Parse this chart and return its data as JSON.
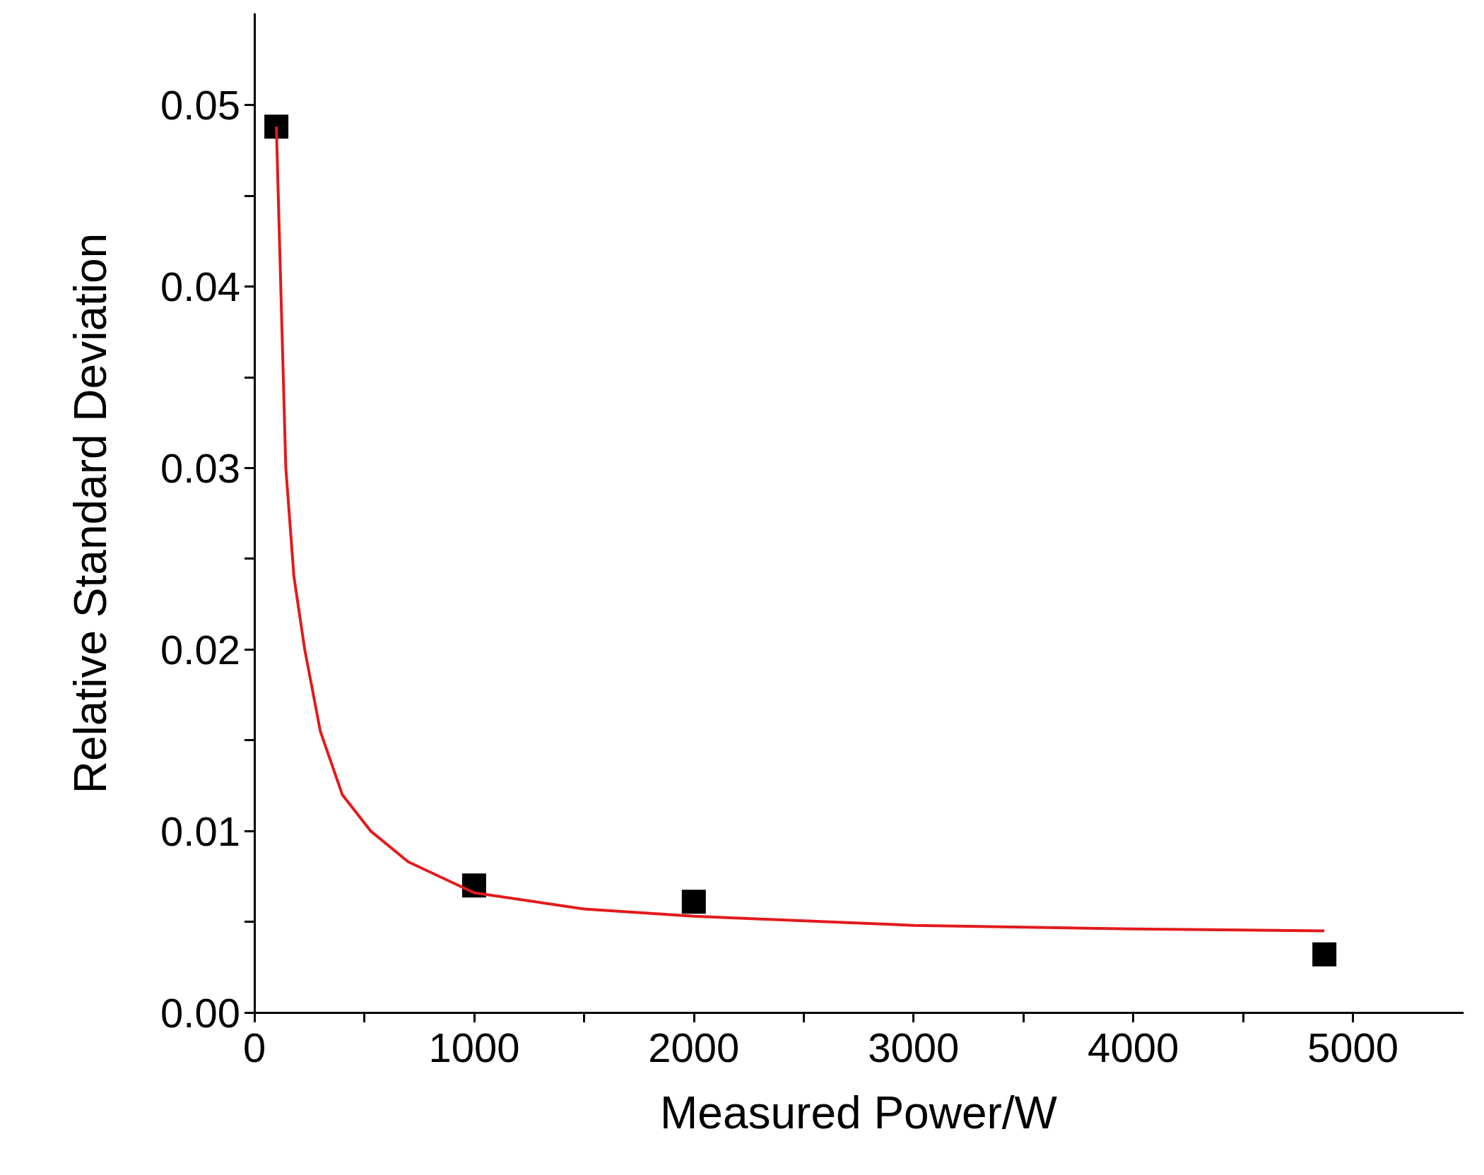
{
  "chart_data": {
    "type": "scatter",
    "xlabel": "Measured Power/W",
    "ylabel": "Relative Standard Deviation",
    "xlim": [
      0,
      5500
    ],
    "ylim": [
      0,
      0.055
    ],
    "xticks": [
      0,
      {
        "value": 500,
        "label": null
      },
      1000,
      {
        "value": 1500,
        "label": null
      },
      2000,
      {
        "value": 2500,
        "label": null
      },
      3000,
      {
        "value": 3500,
        "label": null
      },
      4000,
      {
        "value": 4500,
        "label": null
      },
      5000
    ],
    "yticks": [
      {
        "value": 0,
        "label": "0.00"
      },
      {
        "value": 0.005,
        "label": null
      },
      {
        "value": 0.01,
        "label": "0.01"
      },
      {
        "value": 0.015,
        "label": null
      },
      {
        "value": 0.02,
        "label": "0.02"
      },
      {
        "value": 0.025,
        "label": null
      },
      {
        "value": 0.03,
        "label": "0.03"
      },
      {
        "value": 0.035,
        "label": null
      },
      {
        "value": 0.04,
        "label": "0.04"
      },
      {
        "value": 0.045,
        "label": null
      },
      {
        "value": 0.05,
        "label": "0.05"
      }
    ],
    "grid": false,
    "series": [
      {
        "marker": "square",
        "color": "#000000",
        "x": [
          100,
          1000,
          2000,
          4870
        ],
        "values": [
          0.0488,
          0.007,
          0.0061,
          0.0032
        ]
      },
      {
        "type": "line",
        "marker": "none",
        "color": "#e31a1c",
        "x": [
          100,
          120,
          143,
          180,
          229,
          300,
          400,
          529,
          700,
          1000,
          1500,
          2000,
          3000,
          4000,
          4870
        ],
        "values": [
          0.0488,
          0.04,
          0.03,
          0.024,
          0.02,
          0.0155,
          0.012,
          0.01,
          0.0083,
          0.0066,
          0.0057,
          0.0053,
          0.0048,
          0.0046,
          0.0045
        ]
      }
    ]
  }
}
